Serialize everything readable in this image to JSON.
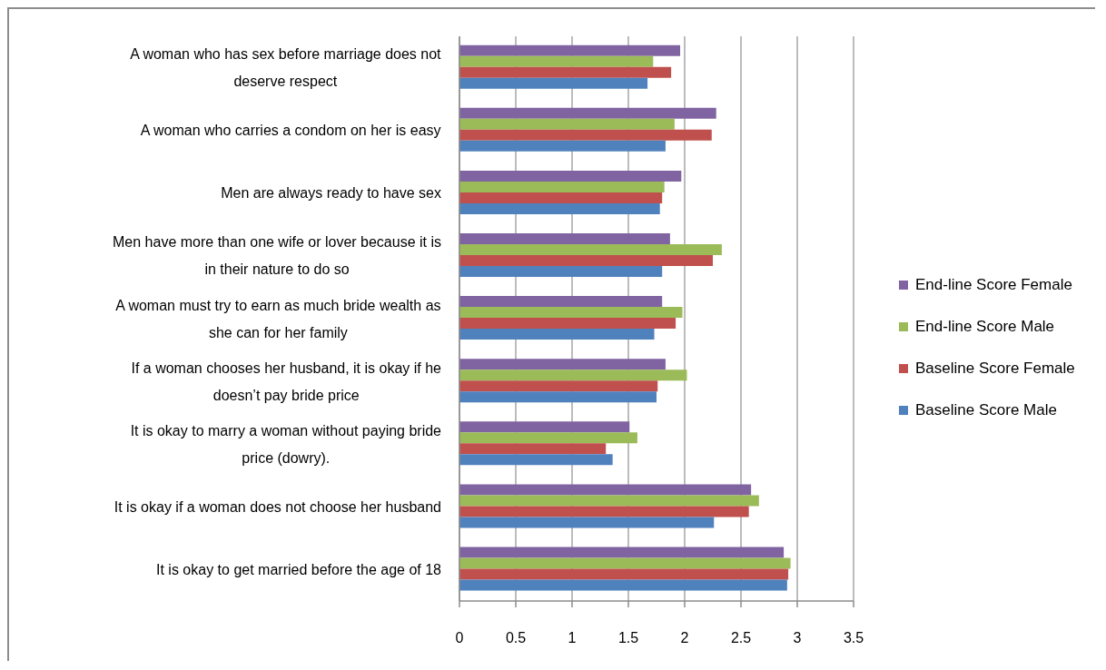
{
  "chart_data": {
    "type": "bar",
    "orientation": "horizontal",
    "categories": [
      "A woman who has sex before marriage does not deserve respect",
      "A woman who carries a condom on her is easy",
      "Men are always ready to have sex",
      "Men have more than one wife or lover because it is in their nature to do so",
      "A woman must try to earn as much bride wealth as she can for her family",
      "If a woman chooses her husband, it is okay if he doesn’t pay bride price",
      "It is okay to marry a woman without paying bride price (dowry).",
      "It is okay if a woman does not choose her husband",
      "It is okay to get married before the age of 18"
    ],
    "series": [
      {
        "name": "End-line Score Female",
        "color": "#8064a2",
        "values": [
          1.96,
          2.28,
          1.97,
          1.87,
          1.8,
          1.83,
          1.51,
          2.59,
          2.88
        ]
      },
      {
        "name": "End-line Score Male",
        "color": "#9bbb59",
        "values": [
          1.72,
          1.91,
          1.82,
          2.33,
          1.98,
          2.02,
          1.58,
          2.66,
          2.94
        ]
      },
      {
        "name": "Baseline Score Female",
        "color": "#c0504d",
        "values": [
          1.88,
          2.24,
          1.8,
          2.25,
          1.92,
          1.76,
          1.3,
          2.57,
          2.92
        ]
      },
      {
        "name": "Baseline Score Male",
        "color": "#4f81bd",
        "values": [
          1.67,
          1.83,
          1.78,
          1.8,
          1.73,
          1.75,
          1.36,
          2.26,
          2.91
        ]
      }
    ],
    "xlim": [
      0,
      3.5
    ],
    "xticks": [
      0,
      0.5,
      1,
      1.5,
      2,
      2.5,
      3,
      3.5
    ],
    "grid": "x",
    "legend": "right"
  }
}
